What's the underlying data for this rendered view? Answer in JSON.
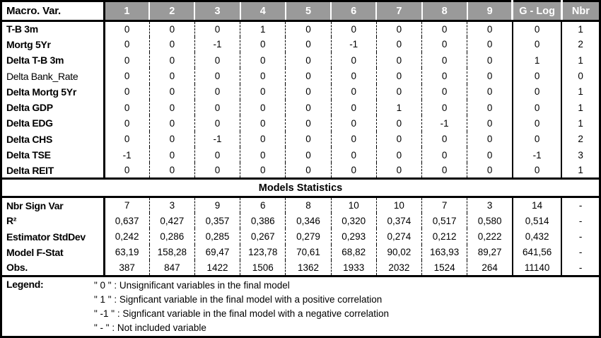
{
  "colors": {
    "header_bg": "#9a9a9a",
    "header_text": "#ffffff",
    "border": "#000000",
    "body_bg": "#ffffff"
  },
  "table": {
    "header": {
      "label": "Macro. Var.",
      "model_columns": [
        "1",
        "2",
        "3",
        "4",
        "5",
        "6",
        "7",
        "8",
        "9"
      ],
      "glog": "G - Log",
      "nbr": "Nbr"
    },
    "macro_rows": [
      {
        "label": "T-B 3m",
        "bold": true,
        "values": [
          "0",
          "0",
          "0",
          "1",
          "0",
          "0",
          "0",
          "0",
          "0"
        ],
        "glog": "0",
        "nbr": "1"
      },
      {
        "label": "Mortg 5Yr",
        "bold": true,
        "values": [
          "0",
          "0",
          "-1",
          "0",
          "0",
          "-1",
          "0",
          "0",
          "0"
        ],
        "glog": "0",
        "nbr": "2"
      },
      {
        "label": "Delta T-B 3m",
        "bold": true,
        "values": [
          "0",
          "0",
          "0",
          "0",
          "0",
          "0",
          "0",
          "0",
          "0"
        ],
        "glog": "1",
        "nbr": "1"
      },
      {
        "label": "Delta Bank_Rate",
        "bold": false,
        "values": [
          "0",
          "0",
          "0",
          "0",
          "0",
          "0",
          "0",
          "0",
          "0"
        ],
        "glog": "0",
        "nbr": "0"
      },
      {
        "label": "Delta Mortg 5Yr",
        "bold": true,
        "values": [
          "0",
          "0",
          "0",
          "0",
          "0",
          "0",
          "0",
          "0",
          "0"
        ],
        "glog": "0",
        "nbr": "1"
      },
      {
        "label": "Delta GDP",
        "bold": true,
        "values": [
          "0",
          "0",
          "0",
          "0",
          "0",
          "0",
          "1",
          "0",
          "0"
        ],
        "glog": "0",
        "nbr": "1"
      },
      {
        "label": "Delta EDG",
        "bold": true,
        "values": [
          "0",
          "0",
          "0",
          "0",
          "0",
          "0",
          "0",
          "-1",
          "0"
        ],
        "glog": "0",
        "nbr": "1"
      },
      {
        "label": "Delta CHS",
        "bold": true,
        "values": [
          "0",
          "0",
          "-1",
          "0",
          "0",
          "0",
          "0",
          "0",
          "0"
        ],
        "glog": "0",
        "nbr": "2"
      },
      {
        "label": "Delta TSE",
        "bold": true,
        "values": [
          "-1",
          "0",
          "0",
          "0",
          "0",
          "0",
          "0",
          "0",
          "0"
        ],
        "glog": "-1",
        "nbr": "3"
      },
      {
        "label": "Delta REIT",
        "bold": true,
        "values": [
          "0",
          "0",
          "0",
          "0",
          "0",
          "0",
          "0",
          "0",
          "0"
        ],
        "glog": "0",
        "nbr": "1"
      }
    ],
    "stats_banner": "Models Statistics",
    "stats_rows": [
      {
        "label": "Nbr Sign Var",
        "values": [
          "7",
          "3",
          "9",
          "6",
          "8",
          "10",
          "10",
          "7",
          "3"
        ],
        "glog": "14",
        "nbr": "-"
      },
      {
        "label": "R²",
        "values": [
          "0,637",
          "0,427",
          "0,357",
          "0,386",
          "0,346",
          "0,320",
          "0,374",
          "0,517",
          "0,580"
        ],
        "glog": "0,514",
        "nbr": "-"
      },
      {
        "label": "Estimator StdDev",
        "values": [
          "0,242",
          "0,286",
          "0,285",
          "0,267",
          "0,279",
          "0,293",
          "0,274",
          "0,212",
          "0,222"
        ],
        "glog": "0,432",
        "nbr": "-"
      },
      {
        "label": "Model F-Stat",
        "values": [
          "63,19",
          "158,28",
          "69,47",
          "123,78",
          "70,61",
          "68,82",
          "90,02",
          "163,93",
          "89,27"
        ],
        "glog": "641,56",
        "nbr": "-"
      },
      {
        "label": "Obs.",
        "values": [
          "387",
          "847",
          "1422",
          "1506",
          "1362",
          "1933",
          "2032",
          "1524",
          "264"
        ],
        "glog": "11140",
        "nbr": "-"
      }
    ],
    "legend": {
      "label": "Legend:",
      "lines": [
        "\" 0 \" : Unsignificant variables in the final model",
        "\" 1 \" : Signficant variable in the final model with a positive correlation",
        "\" -1 \" : Signficant variable in the final model with a negative correlation",
        "\" - \" : Not included variable"
      ]
    }
  }
}
